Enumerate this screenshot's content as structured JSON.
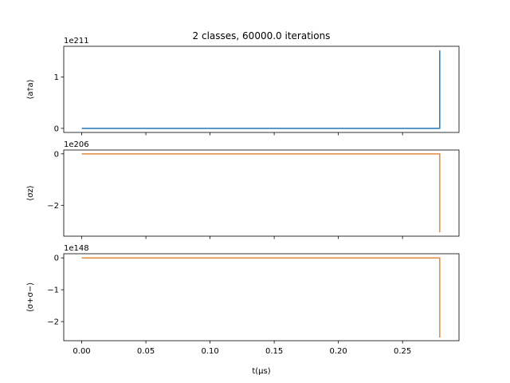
{
  "title": "2 classes, 60000.0 iterations",
  "xlabel": "t(μs)",
  "chart_data": {
    "type": "line",
    "title": "2 classes, 60000.0 iterations",
    "xlabel": "t(μs)",
    "xlim": [
      -0.014,
      0.294
    ],
    "xticks": [
      0.0,
      0.05,
      0.1,
      0.15,
      0.2,
      0.25
    ],
    "xtick_labels": [
      "0.00",
      "0.05",
      "0.10",
      "0.15",
      "0.20",
      "0.25"
    ],
    "panels": [
      {
        "ylabel": "⟨a†a⟩",
        "offset_text": "1e211",
        "ylim": [
          -0.08,
          1.6
        ],
        "yticks": [
          0,
          1
        ],
        "ytick_labels": [
          "0",
          "1"
        ],
        "color": "#1f77b4",
        "series": [
          {
            "x": [
              0.0,
              0.279,
              0.279
            ],
            "y": [
              0,
              0,
              1.52
            ]
          }
        ]
      },
      {
        "ylabel": "⟨σz⟩",
        "offset_text": "1e206",
        "ylim": [
          -3.2,
          0.15
        ],
        "yticks": [
          0,
          -2
        ],
        "ytick_labels": [
          "0",
          "−2"
        ],
        "color": "#e08a3c",
        "series": [
          {
            "x": [
              0.0,
              0.279,
              0.279
            ],
            "y": [
              0,
              0,
              -3.05
            ]
          }
        ]
      },
      {
        "ylabel": "⟨σ+σ−⟩",
        "offset_text": "1e148",
        "ylim": [
          -2.6,
          0.13
        ],
        "yticks": [
          0,
          -1,
          -2
        ],
        "ytick_labels": [
          "0",
          "−1",
          "−2"
        ],
        "color": "#e08a3c",
        "series": [
          {
            "x": [
              0.0,
              0.279,
              0.279
            ],
            "y": [
              0,
              0,
              -2.5
            ]
          }
        ]
      }
    ]
  }
}
